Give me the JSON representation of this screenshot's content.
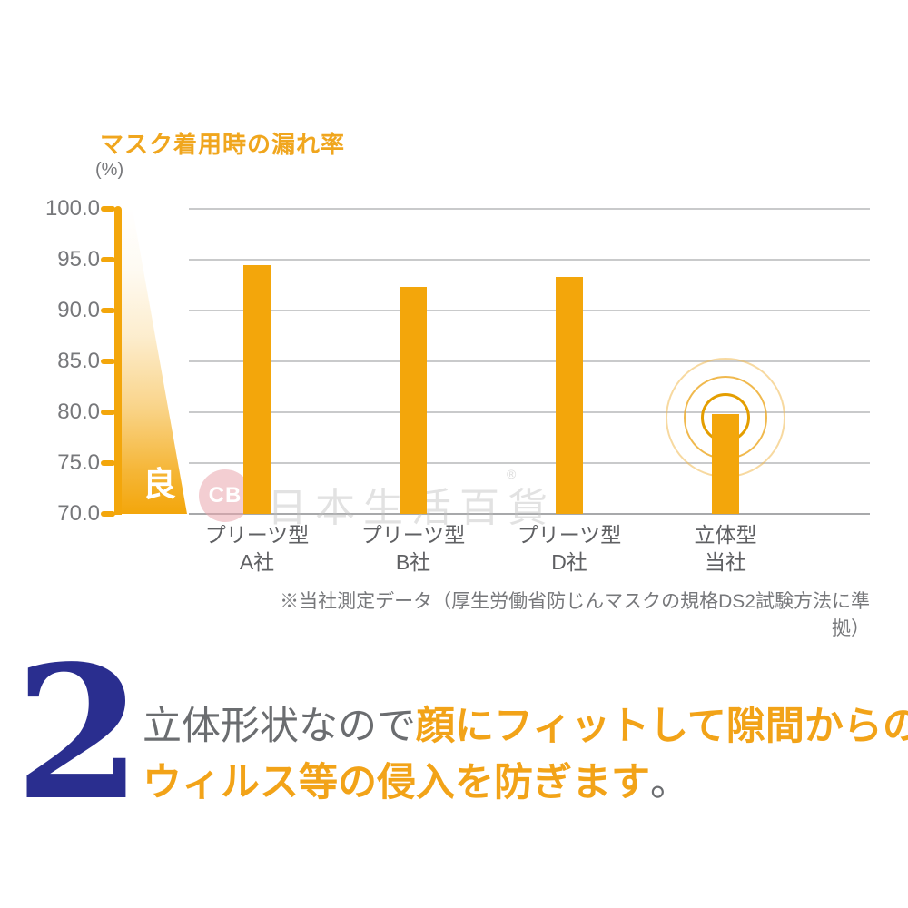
{
  "chart_data": {
    "type": "bar",
    "title": "マスク着用時の漏れ率",
    "unit_label": "(%)",
    "categories": [
      "プリーツ型\nA社",
      "プリーツ型\nB社",
      "プリーツ型\nD社",
      "立体型\n当社"
    ],
    "values": [
      94.5,
      92.3,
      93.3,
      79.8
    ],
    "ylim": [
      70,
      100
    ],
    "ytick_step": 5,
    "ytick_labels": [
      "100.0",
      "95.0",
      "90.0",
      "85.0",
      "80.0",
      "75.0",
      "70.0"
    ],
    "grid": true,
    "legend_position": "none",
    "bar_color": "#F3A60B",
    "good_direction_label": "良",
    "emphasis_index": 3,
    "footnote": "※当社測定データ（厚生労働省防じんマスクの規格DS2試験方法に準拠）"
  },
  "watermark": {
    "badge": "CB",
    "text": "日本生活百貨",
    "registered_mark": "®"
  },
  "caption": {
    "number": "2",
    "line1_plain": "立体形状なので",
    "line1_highlight": "顔にフィットして隙間からの",
    "line2_highlight": "ウィルス等の侵入を防ぎます",
    "line2_plain": "。"
  },
  "colors": {
    "orange": "#F3A60B",
    "title_orange": "#F0A61E",
    "text_orange": "#F2A318",
    "navy": "#2A2E8F",
    "gray_label": "#77787B",
    "gray_dark": "#5F6063",
    "gray_text": "#6B6D70",
    "gridline": "#C9CACB",
    "baseline": "#A8A9AB",
    "ring_inner": "#E49E00",
    "ring_middle": "#ECA722",
    "ring_outer": "#F1BA52",
    "watermark_pink": "#EAA6AD",
    "watermark_gray": "#BEBEBE"
  }
}
